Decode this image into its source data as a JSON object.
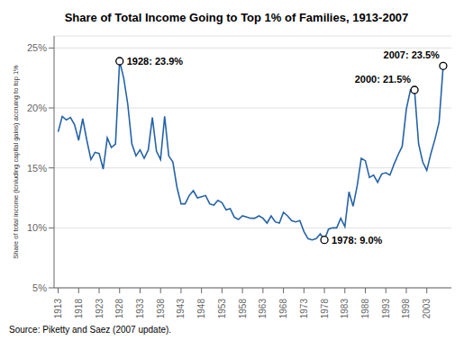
{
  "chart_data": {
    "type": "line",
    "title": "Share of Total Income Going to Top 1% of Families, 1913-2007",
    "y_label": "Share of total income (icnluding capital gains) accruing to top 1%",
    "source": "Source: Piketty and Saez (2007 update).",
    "color": "#2563a8",
    "grid": true,
    "xlim": [
      1912,
      2009
    ],
    "xticks": [
      1913,
      1918,
      1923,
      1928,
      1933,
      1938,
      1943,
      1948,
      1953,
      1958,
      1963,
      1968,
      1973,
      1978,
      1983,
      1988,
      1993,
      1998,
      2003
    ],
    "ylim": [
      5,
      26
    ],
    "yticks": [
      {
        "value": 5,
        "label": "5%"
      },
      {
        "value": 10,
        "label": "10%"
      },
      {
        "value": 15,
        "label": "15%"
      },
      {
        "value": 20,
        "label": "20%"
      },
      {
        "value": 25,
        "label": "25%"
      }
    ],
    "annotations": [
      {
        "x": 1928,
        "y": 23.9,
        "label": "1928: 23.9%"
      },
      {
        "x": 1978,
        "y": 9.0,
        "label": "1978: 9.0%"
      },
      {
        "x": 2000,
        "y": 21.5,
        "label": "2000: 21.5%"
      },
      {
        "x": 2007,
        "y": 23.5,
        "label": "2007: 23.5%"
      }
    ],
    "x": [
      1913,
      1914,
      1915,
      1916,
      1917,
      1918,
      1919,
      1920,
      1921,
      1922,
      1923,
      1924,
      1925,
      1926,
      1927,
      1928,
      1929,
      1930,
      1931,
      1932,
      1933,
      1934,
      1935,
      1936,
      1937,
      1938,
      1939,
      1940,
      1941,
      1942,
      1943,
      1944,
      1945,
      1946,
      1947,
      1948,
      1949,
      1950,
      1951,
      1952,
      1953,
      1954,
      1955,
      1956,
      1957,
      1958,
      1959,
      1960,
      1961,
      1962,
      1963,
      1964,
      1965,
      1966,
      1967,
      1968,
      1969,
      1970,
      1971,
      1972,
      1973,
      1974,
      1975,
      1976,
      1977,
      1978,
      1979,
      1980,
      1981,
      1982,
      1983,
      1984,
      1985,
      1986,
      1987,
      1988,
      1989,
      1990,
      1991,
      1992,
      1993,
      1994,
      1995,
      1996,
      1997,
      1998,
      1999,
      2000,
      2001,
      2002,
      2003,
      2004,
      2005,
      2006,
      2007
    ],
    "values": [
      18.0,
      19.3,
      19.0,
      19.2,
      18.6,
      17.3,
      19.1,
      17.3,
      15.7,
      16.3,
      16.2,
      14.9,
      17.5,
      16.7,
      17.0,
      23.9,
      22.5,
      20.3,
      17.0,
      16.0,
      16.5,
      15.8,
      16.5,
      19.2,
      16.4,
      15.7,
      19.3,
      16.0,
      15.5,
      13.4,
      12.0,
      12.0,
      12.7,
      13.1,
      12.5,
      12.6,
      12.7,
      12.0,
      11.9,
      12.3,
      12.1,
      11.5,
      11.6,
      10.9,
      10.7,
      11.0,
      10.9,
      10.8,
      10.8,
      11.0,
      10.8,
      10.4,
      11.0,
      10.5,
      10.4,
      11.3,
      11.0,
      10.6,
      10.5,
      10.6,
      9.7,
      9.1,
      9.0,
      9.1,
      9.5,
      9.0,
      9.9,
      10.0,
      10.0,
      10.8,
      10.1,
      13.0,
      11.8,
      13.5,
      15.8,
      15.6,
      14.2,
      14.4,
      13.8,
      14.5,
      14.6,
      14.4,
      15.3,
      16.1,
      16.8,
      19.9,
      21.5,
      21.5,
      17.0,
      15.5,
      14.8,
      16.2,
      17.4,
      18.8,
      23.5
    ]
  }
}
